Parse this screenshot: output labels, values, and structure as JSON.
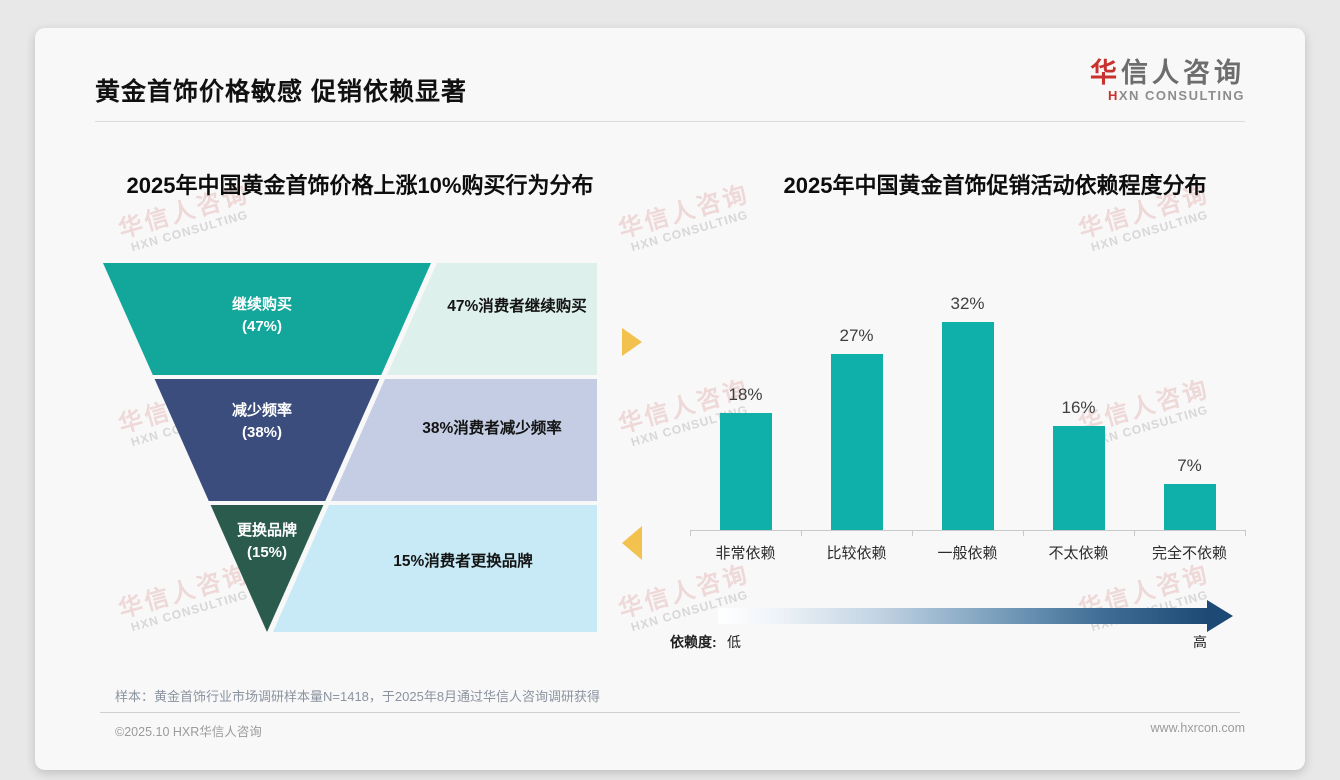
{
  "page": {
    "title": "黄金首饰价格敏感 促销依赖显著",
    "logo": {
      "accent": "华",
      "rest": "信人咨询",
      "sub_accent": "H",
      "sub_rest": "XN CONSULTING"
    },
    "watermark": {
      "cn": "华信人咨询",
      "en": "HXN CONSULTING"
    }
  },
  "chart_data": [
    {
      "type": "funnel",
      "title": "2025年中国黄金首饰价格上涨10%购买行为分布",
      "categories": [
        "继续购买",
        "减少频率",
        "更换品牌"
      ],
      "values": [
        47,
        38,
        15
      ],
      "segments": [
        {
          "name": "继续购买",
          "pct": "(47%)",
          "value": 47,
          "color": "#13a69a",
          "annotation": "47%消费者继续购买",
          "annotation_bg": "#def0eb"
        },
        {
          "name": "减少频率",
          "pct": "(38%)",
          "value": 38,
          "color": "#3b4d7c",
          "annotation": "38%消费者减少频率",
          "annotation_bg": "#c4cde4"
        },
        {
          "name": "更换品牌",
          "pct": "(15%)",
          "value": 15,
          "color": "#2a5b4d",
          "annotation": "15%消费者更换品牌",
          "annotation_bg": "#c7eaf6"
        }
      ]
    },
    {
      "type": "bar",
      "title": "2025年中国黄金首饰促销活动依赖程度分布",
      "categories": [
        "非常依赖",
        "比较依赖",
        "一般依赖",
        "不太依赖",
        "完全不依赖"
      ],
      "values": [
        18,
        27,
        32,
        16,
        7
      ],
      "data_labels": [
        "18%",
        "27%",
        "32%",
        "16%",
        "7%"
      ],
      "bar_color": "#0fb0a9",
      "ylim": [
        0,
        35
      ],
      "grid": false,
      "legend": "none",
      "dependence_axis": {
        "label": "依赖度:",
        "low": "低",
        "high": "高",
        "gradient_start": "#ffffff",
        "gradient_end": "#1d4a74"
      }
    }
  ],
  "footer": {
    "note": "样本：黄金首饰行业市场调研样本量N=1418，于2025年8月通过华信人咨询调研获得",
    "copyright": "©2025.10 HXR华信人咨询",
    "website": "www.hxrcon.com"
  },
  "colors": {
    "brand_red": "#c8322e",
    "accent_yellow": "#f2c14e",
    "bar_teal": "#0fb0a9",
    "card_bg": "#f8f8f8"
  }
}
